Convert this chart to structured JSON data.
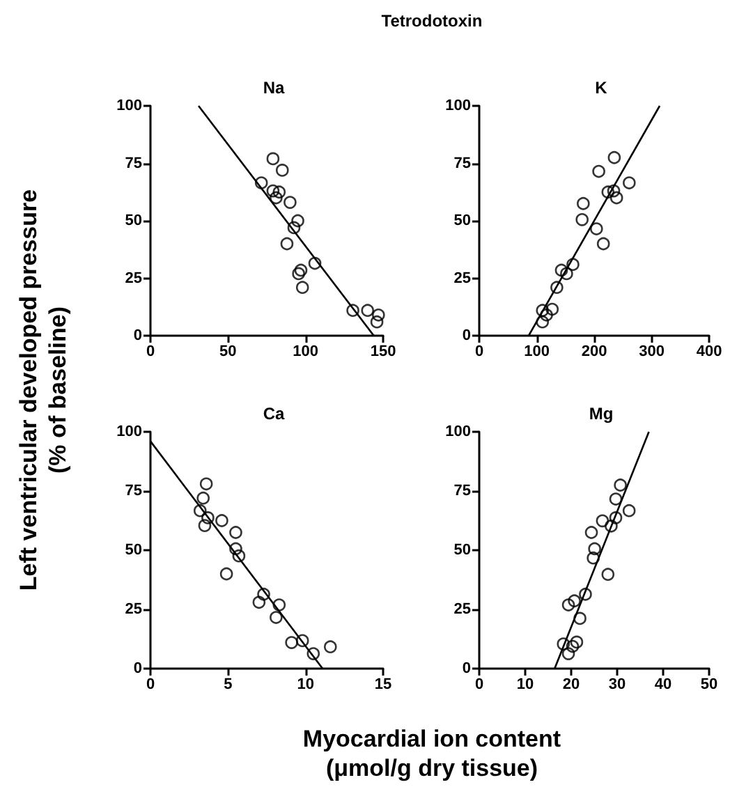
{
  "chart_data": [
    {
      "type": "scatter",
      "title": "Na",
      "annotations": [
        "Tetrodotoxin"
      ],
      "ylabel": "Left ventricular developed pressure\n(% of baseline)",
      "xlim": [
        0,
        150
      ],
      "xticks": [
        0,
        50,
        100,
        150
      ],
      "ylim": [
        0,
        100
      ],
      "yticks": [
        0,
        25,
        50,
        75,
        100
      ],
      "marker": "circle",
      "series": [
        {
          "color": "#000000",
          "x": [
            71.5,
            79,
            85,
            79,
            83,
            81,
            90,
            95,
            92.5,
            88,
            106,
            97,
            95.5,
            98,
            130.5,
            140,
            146,
            147
          ],
          "values": [
            66.5,
            77,
            72,
            63,
            62.5,
            60,
            58,
            50,
            47,
            40,
            31.5,
            28.5,
            27,
            21,
            11,
            11,
            6,
            9
          ]
        },
        {
          "type": "line",
          "marker": "none",
          "color": "#000000",
          "x": [
            31,
            144
          ],
          "values": [
            100,
            0
          ]
        }
      ]
    },
    {
      "type": "scatter",
      "title": "K",
      "xlim": [
        0,
        400
      ],
      "xticks": [
        0,
        100,
        200,
        300,
        400
      ],
      "ylim": [
        0,
        100
      ],
      "yticks": [
        0,
        25,
        50,
        75,
        100
      ],
      "marker": "circle",
      "series": [
        {
          "color": "#000000",
          "x": [
            110,
            110,
            117,
            127,
            135,
            143,
            152,
            163,
            179,
            181,
            204,
            216,
            208,
            224,
            234,
            239,
            235,
            261
          ],
          "values": [
            6,
            11,
            9,
            11.5,
            21,
            28.5,
            27,
            31,
            50.5,
            57.5,
            46.5,
            40,
            71.5,
            62.5,
            63,
            60,
            77.5,
            66.5
          ]
        },
        {
          "type": "line",
          "marker": "none",
          "color": "#000000",
          "x": [
            86,
            314
          ],
          "values": [
            0,
            100
          ]
        }
      ]
    },
    {
      "type": "scatter",
      "title": "Ca",
      "xlim": [
        0,
        15
      ],
      "xticks": [
        0,
        5,
        10,
        15
      ],
      "ylim": [
        0,
        100
      ],
      "yticks": [
        0,
        25,
        50,
        75,
        100
      ],
      "marker": "circle",
      "series": [
        {
          "color": "#000000",
          "x": [
            3.2,
            3.4,
            3.6,
            3.5,
            3.7,
            4.6,
            5.5,
            5.5,
            5.7,
            4.9,
            7.0,
            7.3,
            8.1,
            8.3,
            9.1,
            9.8,
            10.5,
            11.6
          ],
          "values": [
            66.7,
            72,
            78,
            60.4,
            63.7,
            62.5,
            57.5,
            50.6,
            47.6,
            40,
            28,
            31.4,
            21.6,
            26.9,
            11,
            11.8,
            6.3,
            9.2
          ]
        },
        {
          "type": "line",
          "marker": "none",
          "color": "#000000",
          "x": [
            0,
            11.1
          ],
          "values": [
            96,
            0
          ]
        }
      ]
    },
    {
      "type": "scatter",
      "title": "Mg",
      "xlabel": "Myocardial ion content\n(μmol/g dry tissue)",
      "xlim": [
        0,
        50
      ],
      "xticks": [
        0,
        10,
        20,
        30,
        40,
        50
      ],
      "ylim": [
        0,
        100
      ],
      "yticks": [
        0,
        25,
        50,
        75,
        100
      ],
      "marker": "circle",
      "series": [
        {
          "color": "#000000",
          "x": [
            18.3,
            19.4,
            20.3,
            21.2,
            19.4,
            20.7,
            21.9,
            23.1,
            24.4,
            24.8,
            25.1,
            26.8,
            28.0,
            28.7,
            29.7,
            29.7,
            30.7,
            32.6
          ],
          "values": [
            10.4,
            6.3,
            9.4,
            11.2,
            26.9,
            28.6,
            21.2,
            31.4,
            57.5,
            46.7,
            50.6,
            62.4,
            39.8,
            60.2,
            63.7,
            71.6,
            77.5,
            66.7
          ]
        },
        {
          "type": "line",
          "marker": "none",
          "color": "#000000",
          "x": [
            16.4,
            36.9
          ],
          "values": [
            0,
            100
          ]
        }
      ]
    }
  ]
}
